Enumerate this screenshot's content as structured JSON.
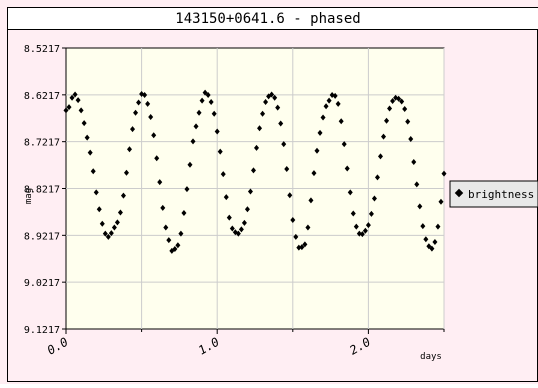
{
  "chart_data": {
    "type": "scatter",
    "title": "143150+0641.6 - phased",
    "xlabel": "days",
    "ylabel": "mag",
    "xlim": [
      0.0,
      2.5
    ],
    "ylim": [
      8.5217,
      9.1217
    ],
    "y_inverted": true,
    "grid": true,
    "legend_position": "right",
    "x_ticks": [
      0.0,
      1.0,
      2.0
    ],
    "x_tick_labels": [
      "0.0",
      "1.0",
      "2.0"
    ],
    "y_ticks": [
      8.5217,
      8.6217,
      8.7217,
      8.8217,
      8.9217,
      9.0217,
      9.1217
    ],
    "y_tick_labels": [
      "8.5217",
      "8.6217",
      "8.7217",
      "8.8217",
      "8.9217",
      "9.0217",
      "9.1217"
    ],
    "series": [
      {
        "name": "brightness",
        "period_days": 0.93,
        "x": [
          0.0,
          0.02,
          0.04,
          0.06,
          0.08,
          0.1,
          0.12,
          0.14,
          0.16,
          0.18,
          0.2,
          0.22,
          0.24,
          0.26,
          0.28,
          0.3,
          0.32,
          0.34,
          0.36,
          0.38,
          0.4,
          0.42,
          0.44,
          0.46,
          0.48,
          0.5,
          0.52,
          0.54,
          0.56,
          0.58,
          0.6,
          0.62,
          0.64,
          0.66,
          0.68,
          0.7,
          0.72,
          0.74,
          0.76,
          0.78,
          0.8,
          0.82,
          0.84,
          0.86,
          0.88,
          0.9,
          0.92,
          0.94,
          0.96,
          0.98,
          1.0,
          1.02,
          1.04,
          1.06,
          1.08,
          1.1,
          1.12,
          1.14,
          1.16,
          1.18,
          1.2,
          1.22,
          1.24,
          1.26,
          1.28,
          1.3,
          1.32,
          1.34,
          1.36,
          1.38,
          1.4,
          1.42,
          1.44,
          1.46,
          1.48,
          1.5,
          1.52,
          1.54,
          1.56,
          1.58,
          1.6,
          1.62,
          1.64,
          1.66,
          1.68,
          1.7,
          1.72,
          1.74,
          1.76,
          1.78,
          1.8,
          1.82,
          1.84,
          1.86,
          1.88,
          1.9,
          1.92,
          1.94,
          1.96,
          1.98,
          2.0,
          2.02,
          2.04,
          2.06,
          2.08,
          2.1,
          2.12,
          2.14,
          2.16,
          2.18,
          2.2,
          2.22,
          2.24,
          2.26,
          2.28,
          2.3,
          2.32,
          2.34,
          2.36,
          2.38,
          2.4,
          2.42,
          2.44,
          2.46,
          2.48,
          2.5
        ],
        "y": [
          8.655,
          8.648,
          8.628,
          8.621,
          8.633,
          8.655,
          8.682,
          8.713,
          8.745,
          8.785,
          8.83,
          8.866,
          8.897,
          8.918,
          8.925,
          8.917,
          8.905,
          8.894,
          8.873,
          8.837,
          8.788,
          8.738,
          8.695,
          8.66,
          8.638,
          8.62,
          8.622,
          8.641,
          8.669,
          8.708,
          8.757,
          8.808,
          8.863,
          8.905,
          8.932,
          8.955,
          8.951,
          8.943,
          8.918,
          8.874,
          8.823,
          8.771,
          8.721,
          8.689,
          8.66,
          8.634,
          8.617,
          8.622,
          8.637,
          8.662,
          8.7,
          8.743,
          8.791,
          8.84,
          8.884,
          8.907,
          8.915,
          8.918,
          8.909,
          8.895,
          8.866,
          8.828,
          8.783,
          8.735,
          8.693,
          8.662,
          8.637,
          8.625,
          8.621,
          8.628,
          8.649,
          8.683,
          8.727,
          8.78,
          8.836,
          8.889,
          8.925,
          8.948,
          8.947,
          8.941,
          8.905,
          8.847,
          8.789,
          8.741,
          8.703,
          8.67,
          8.646,
          8.634,
          8.622,
          8.624,
          8.641,
          8.678,
          8.727,
          8.779,
          8.83,
          8.875,
          8.903,
          8.918,
          8.919,
          8.912,
          8.9,
          8.876,
          8.843,
          8.798,
          8.753,
          8.711,
          8.677,
          8.651,
          8.635,
          8.628,
          8.63,
          8.636,
          8.652,
          8.679,
          8.716,
          8.765,
          8.813,
          8.86,
          8.902,
          8.93,
          8.945,
          8.95,
          8.936,
          8.903,
          8.85,
          8.79
        ]
      }
    ]
  }
}
